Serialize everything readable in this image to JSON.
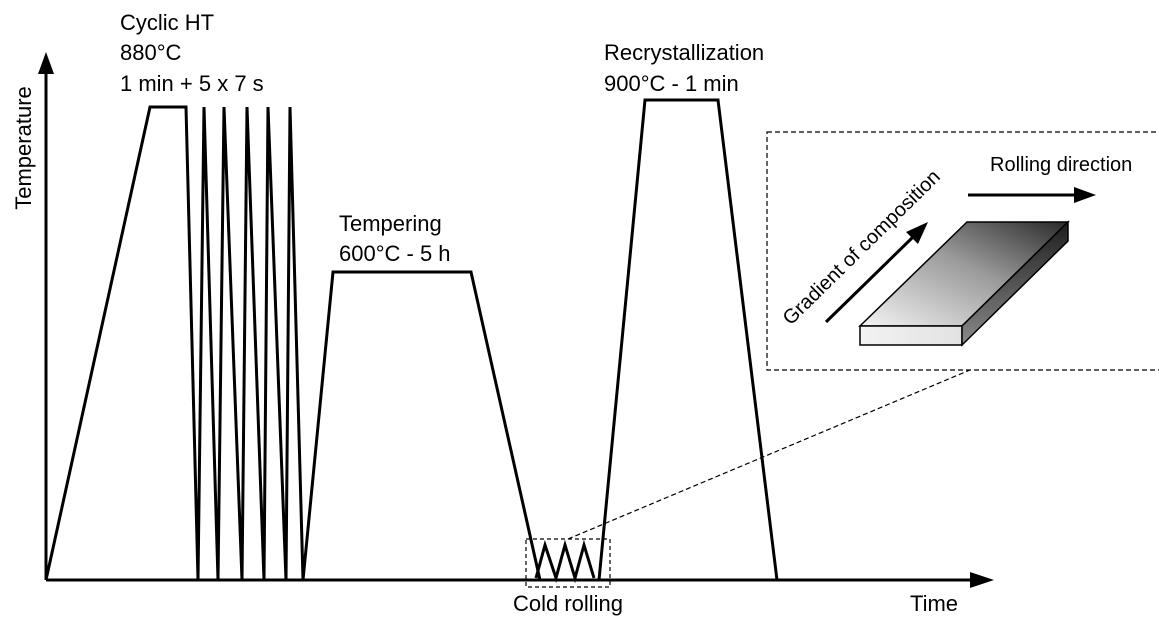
{
  "axes": {
    "x_label": "Time",
    "y_label": "Temperature"
  },
  "stages": {
    "cyclic_ht": {
      "title": "Cyclic HT",
      "temperature": "880°C",
      "duration": "1 min + 5 x 7 s"
    },
    "tempering": {
      "title": "Tempering",
      "condition": "600°C - 5 h"
    },
    "cold_rolling": {
      "label": "Cold rolling"
    },
    "recrystallization": {
      "title": "Recrystallization",
      "condition": "900°C - 1 min"
    }
  },
  "inset": {
    "rolling_direction_label": "Rolling direction",
    "gradient_label": "Gradient of composition"
  },
  "colors": {
    "line": "#000000",
    "sheet_dark": "#2a2a2a",
    "sheet_light": "#f2f2f2"
  }
}
